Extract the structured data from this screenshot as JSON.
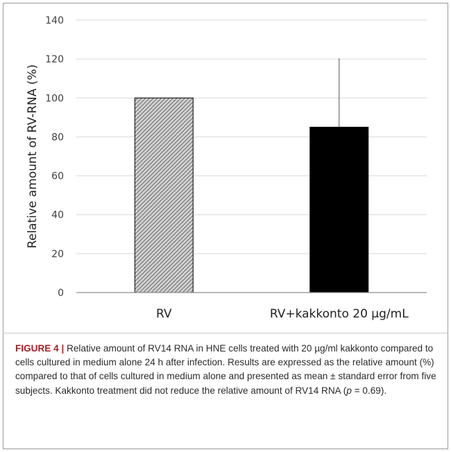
{
  "chart_data": {
    "type": "bar",
    "categories": [
      "RV",
      "RV+kakkonto 20 µg/mL"
    ],
    "values": [
      100,
      85
    ],
    "error_upper": [
      0,
      35
    ],
    "ylabel": "Relative amount of RV-RNA (%)",
    "xlabel": "",
    "ylim": [
      0,
      140
    ],
    "yticks": [
      0,
      20,
      40,
      60,
      80,
      100,
      120,
      140
    ],
    "grid": true,
    "bar_fills": [
      "hatched-gray",
      "solid-black"
    ]
  },
  "colors": {
    "bar_hatch_bg": "#d0d0d0",
    "bar_hatch_line": "#6a6a6a",
    "bar_solid": "#000000",
    "gridline": "#d9d9d9",
    "figure_label": "#a31f24"
  },
  "caption": {
    "label": "FIGURE 4 |",
    "text_before_p": " Relative amount of RV14 RNA in HNE cells treated with 20 µg/ml kakkonto compared to cells cultured in medium alone 24 h after infection. Results are expressed as the relative amount (%) compared to that of cells cultured in medium alone and presented as mean ± standard error from five subjects. Kakkonto treatment did not reduce the relative amount of RV14 RNA (",
    "p_symbol": "p",
    "text_after_p": " = 0.69)."
  }
}
